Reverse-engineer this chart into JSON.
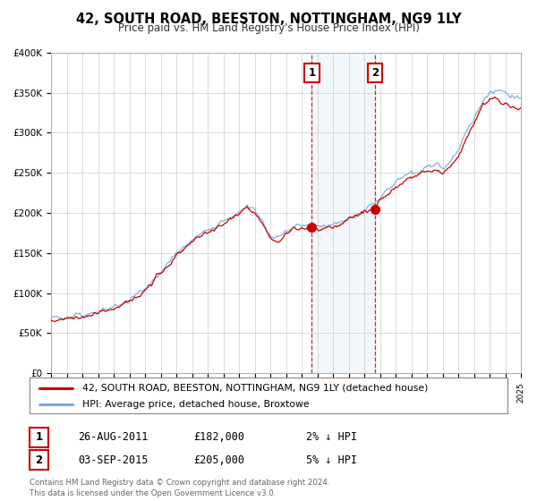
{
  "title": "42, SOUTH ROAD, BEESTON, NOTTINGHAM, NG9 1LY",
  "subtitle": "Price paid vs. HM Land Registry's House Price Index (HPI)",
  "legend_line1": "42, SOUTH ROAD, BEESTON, NOTTINGHAM, NG9 1LY (detached house)",
  "legend_line2": "HPI: Average price, detached house, Broxtowe",
  "annotation1_date": "26-AUG-2011",
  "annotation1_price": "£182,000",
  "annotation1_hpi": "2% ↓ HPI",
  "annotation1_year": 2011.65,
  "annotation1_value": 182000,
  "annotation2_date": "03-SEP-2015",
  "annotation2_price": "£205,000",
  "annotation2_hpi": "5% ↓ HPI",
  "annotation2_year": 2015.67,
  "annotation2_value": 205000,
  "footer_line1": "Contains HM Land Registry data © Crown copyright and database right 2024.",
  "footer_line2": "This data is licensed under the Open Government Licence v3.0.",
  "price_color": "#cc0000",
  "hpi_color": "#7aadda",
  "shading_color": "#ddeeff",
  "background_color": "#ffffff",
  "grid_color": "#cccccc",
  "ylim": [
    0,
    400000
  ],
  "xlim_start": 1995,
  "xlim_end": 2025
}
